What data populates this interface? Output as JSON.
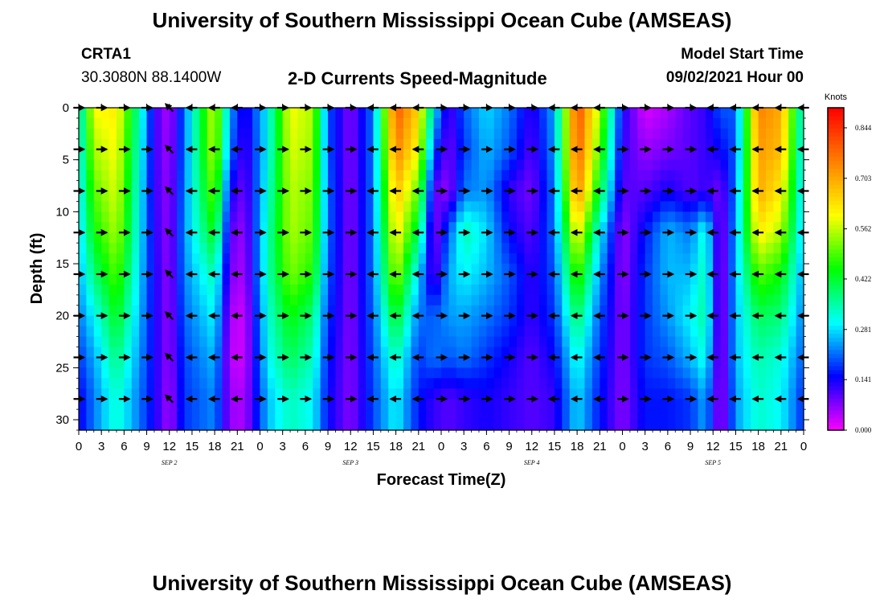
{
  "page": {
    "title_top": "University of Southern Mississippi Ocean Cube (AMSEAS)",
    "title_bottom": "University of Southern Mississippi Ocean Cube (AMSEAS)",
    "station": "CRTA1",
    "location": "30.3080N  88.1400W",
    "plot_title": "2-D Currents Speed-Magnitude",
    "model_start_label": "Model Start Time",
    "model_start_value": "09/02/2021 Hour 00"
  },
  "chart_data": {
    "type": "heatmap",
    "title": "2-D Currents Speed-Magnitude",
    "xlabel": "Forecast Time(Z)",
    "ylabel": "Depth (ft)",
    "x_range_hours": [
      0,
      96
    ],
    "ylim": [
      0,
      31
    ],
    "x_tick_labels": [
      "0",
      "3",
      "6",
      "9",
      "12",
      "15",
      "18",
      "21",
      "0",
      "3",
      "6",
      "9",
      "12",
      "15",
      "18",
      "21",
      "0",
      "3",
      "6",
      "9",
      "12",
      "15",
      "18",
      "21",
      "0",
      "3",
      "6",
      "9",
      "12",
      "15",
      "18",
      "21",
      "0"
    ],
    "y_ticks": [
      0,
      5,
      10,
      15,
      20,
      25,
      30
    ],
    "day_labels": [
      {
        "label": "SEP 2",
        "hour": 12
      },
      {
        "label": "SEP 3",
        "hour": 36
      },
      {
        "label": "SEP 4",
        "hour": 60
      },
      {
        "label": "SEP 5",
        "hour": 84
      }
    ],
    "colorbar": {
      "unit": "Knots",
      "min": 0.0,
      "max": 0.9,
      "ticks": [
        "0.000",
        "0.141",
        "0.281",
        "0.422",
        "0.562",
        "0.703",
        "0.844"
      ],
      "tick_values": [
        0.0,
        0.141,
        0.281,
        0.422,
        0.562,
        0.703,
        0.844
      ],
      "colors": [
        "#ff00ff",
        "#8000ff",
        "#0000ff",
        "#0080ff",
        "#00ffff",
        "#00ff80",
        "#00ff00",
        "#80ff00",
        "#ffff00",
        "#ffc000",
        "#ff8000",
        "#ff4000",
        "#ff0000"
      ]
    },
    "arrow_depths_ft": [
      0,
      4,
      8,
      12,
      16,
      20,
      24,
      28
    ],
    "arrow_hours": [
      0,
      3,
      6,
      9,
      12,
      15,
      18,
      21,
      24,
      27,
      30,
      33,
      36,
      39,
      42,
      45,
      48,
      51,
      54,
      57,
      60,
      63,
      66,
      69,
      72,
      75,
      78,
      81,
      84,
      87,
      90,
      93,
      96
    ],
    "speed_field": {
      "description": "Current speed magnitude (knots) versus forecast hour and depth, estimated from the colour map",
      "columns": [
        {
          "hour": 0,
          "speeds": [
            0.3,
            0.29,
            0.28,
            0.27,
            0.25,
            0.22,
            0.18,
            0.14
          ]
        },
        {
          "hour": 2,
          "speeds": [
            0.6,
            0.55,
            0.5,
            0.45,
            0.38,
            0.3,
            0.25,
            0.22
          ]
        },
        {
          "hour": 5,
          "speeds": [
            0.62,
            0.6,
            0.58,
            0.55,
            0.5,
            0.44,
            0.38,
            0.33
          ]
        },
        {
          "hour": 8,
          "speeds": [
            0.35,
            0.33,
            0.31,
            0.3,
            0.28,
            0.26,
            0.24,
            0.22
          ]
        },
        {
          "hour": 10,
          "speeds": [
            0.12,
            0.12,
            0.12,
            0.13,
            0.14,
            0.14,
            0.14,
            0.14
          ]
        },
        {
          "hour": 12,
          "speeds": [
            0.04,
            0.05,
            0.06,
            0.06,
            0.06,
            0.06,
            0.06,
            0.05
          ]
        },
        {
          "hour": 14,
          "speeds": [
            0.22,
            0.22,
            0.23,
            0.24,
            0.23,
            0.21,
            0.19,
            0.18
          ]
        },
        {
          "hour": 18,
          "speeds": [
            0.58,
            0.57,
            0.52,
            0.45,
            0.35,
            0.3,
            0.26,
            0.23
          ]
        },
        {
          "hour": 20,
          "speeds": [
            0.25,
            0.22,
            0.15,
            0.1,
            0.08,
            0.05,
            0.04,
            0.06
          ]
        },
        {
          "hour": 22,
          "speeds": [
            0.12,
            0.1,
            0.08,
            0.06,
            0.05,
            0.03,
            0.03,
            0.05
          ]
        },
        {
          "hour": 25,
          "speeds": [
            0.3,
            0.3,
            0.32,
            0.34,
            0.34,
            0.32,
            0.3,
            0.26
          ]
        },
        {
          "hour": 28,
          "speeds": [
            0.6,
            0.58,
            0.56,
            0.55,
            0.52,
            0.45,
            0.4,
            0.34
          ]
        },
        {
          "hour": 31,
          "speeds": [
            0.55,
            0.54,
            0.52,
            0.5,
            0.46,
            0.38,
            0.34,
            0.3
          ]
        },
        {
          "hour": 33,
          "speeds": [
            0.2,
            0.2,
            0.21,
            0.21,
            0.2,
            0.18,
            0.16,
            0.15
          ]
        },
        {
          "hour": 36,
          "speeds": [
            0.07,
            0.07,
            0.07,
            0.07,
            0.07,
            0.07,
            0.07,
            0.07
          ]
        },
        {
          "hour": 39,
          "speeds": [
            0.22,
            0.22,
            0.22,
            0.22,
            0.22,
            0.21,
            0.2,
            0.19
          ]
        },
        {
          "hour": 42,
          "speeds": [
            0.8,
            0.75,
            0.68,
            0.62,
            0.55,
            0.44,
            0.35,
            0.3
          ]
        },
        {
          "hour": 45,
          "speeds": [
            0.65,
            0.6,
            0.5,
            0.4,
            0.28,
            0.22,
            0.18,
            0.16
          ]
        },
        {
          "hour": 47,
          "speeds": [
            0.3,
            0.2,
            0.1,
            0.06,
            0.08,
            0.2,
            0.22,
            0.12
          ]
        },
        {
          "hour": 49,
          "speeds": [
            0.1,
            0.08,
            0.06,
            0.2,
            0.25,
            0.24,
            0.2,
            0.1
          ]
        },
        {
          "hour": 51,
          "speeds": [
            0.2,
            0.18,
            0.22,
            0.35,
            0.3,
            0.25,
            0.22,
            0.12
          ]
        },
        {
          "hour": 54,
          "speeds": [
            0.28,
            0.26,
            0.24,
            0.28,
            0.26,
            0.22,
            0.18,
            0.14
          ]
        },
        {
          "hour": 57,
          "speeds": [
            0.22,
            0.2,
            0.12,
            0.15,
            0.2,
            0.18,
            0.14,
            0.12
          ]
        },
        {
          "hour": 60,
          "speeds": [
            0.12,
            0.1,
            0.08,
            0.1,
            0.12,
            0.12,
            0.1,
            0.1
          ]
        },
        {
          "hour": 63,
          "speeds": [
            0.25,
            0.24,
            0.22,
            0.22,
            0.2,
            0.18,
            0.15,
            0.12
          ]
        },
        {
          "hour": 66,
          "speeds": [
            0.82,
            0.8,
            0.75,
            0.62,
            0.5,
            0.4,
            0.32,
            0.28
          ]
        },
        {
          "hour": 69,
          "speeds": [
            0.55,
            0.5,
            0.42,
            0.3,
            0.24,
            0.2,
            0.18,
            0.16
          ]
        },
        {
          "hour": 72,
          "speeds": [
            0.14,
            0.12,
            0.1,
            0.06,
            0.06,
            0.07,
            0.07,
            0.07
          ]
        },
        {
          "hour": 75,
          "speeds": [
            0.02,
            0.06,
            0.1,
            0.16,
            0.18,
            0.18,
            0.18,
            0.16
          ]
        },
        {
          "hour": 78,
          "speeds": [
            0.05,
            0.08,
            0.14,
            0.26,
            0.26,
            0.24,
            0.2,
            0.16
          ]
        },
        {
          "hour": 81,
          "speeds": [
            0.1,
            0.1,
            0.1,
            0.22,
            0.26,
            0.3,
            0.26,
            0.18
          ]
        },
        {
          "hour": 83,
          "speeds": [
            0.12,
            0.12,
            0.12,
            0.33,
            0.35,
            0.36,
            0.32,
            0.25
          ]
        },
        {
          "hour": 85,
          "speeds": [
            0.2,
            0.15,
            0.08,
            0.05,
            0.04,
            0.04,
            0.04,
            0.04
          ]
        },
        {
          "hour": 87,
          "speeds": [
            0.2,
            0.2,
            0.22,
            0.25,
            0.26,
            0.26,
            0.26,
            0.24
          ]
        },
        {
          "hour": 90,
          "speeds": [
            0.75,
            0.72,
            0.7,
            0.62,
            0.5,
            0.4,
            0.35,
            0.33
          ]
        },
        {
          "hour": 93,
          "speeds": [
            0.7,
            0.68,
            0.62,
            0.55,
            0.45,
            0.38,
            0.32,
            0.3
          ]
        },
        {
          "hour": 96,
          "speeds": [
            0.3,
            0.28,
            0.27,
            0.26,
            0.24,
            0.22,
            0.2,
            0.17
          ]
        }
      ]
    },
    "arrow_directions": [
      {
        "hour": 0,
        "direction": "east"
      },
      {
        "hour": 3,
        "direction": "east"
      },
      {
        "hour": 6,
        "direction": "east"
      },
      {
        "hour": 9,
        "direction": "east"
      },
      {
        "hour": 12,
        "direction": "north-west"
      },
      {
        "hour": 15,
        "direction": "west"
      },
      {
        "hour": 18,
        "direction": "west"
      },
      {
        "hour": 21,
        "direction": "west"
      },
      {
        "hour": 24,
        "direction": "east"
      },
      {
        "hour": 27,
        "direction": "east"
      },
      {
        "hour": 30,
        "direction": "east"
      },
      {
        "hour": 33,
        "direction": "east"
      },
      {
        "hour": 36,
        "direction": "east"
      },
      {
        "hour": 39,
        "direction": "west"
      },
      {
        "hour": 42,
        "direction": "west"
      },
      {
        "hour": 45,
        "direction": "west"
      },
      {
        "hour": 48,
        "direction": "east"
      },
      {
        "hour": 51,
        "direction": "east"
      },
      {
        "hour": 54,
        "direction": "east"
      },
      {
        "hour": 57,
        "direction": "east"
      },
      {
        "hour": 60,
        "direction": "east"
      },
      {
        "hour": 63,
        "direction": "west"
      },
      {
        "hour": 66,
        "direction": "west"
      },
      {
        "hour": 69,
        "direction": "west"
      },
      {
        "hour": 72,
        "direction": "east"
      },
      {
        "hour": 75,
        "direction": "east"
      },
      {
        "hour": 78,
        "direction": "east"
      },
      {
        "hour": 81,
        "direction": "east"
      },
      {
        "hour": 84,
        "direction": "west"
      },
      {
        "hour": 87,
        "direction": "west"
      },
      {
        "hour": 90,
        "direction": "west"
      },
      {
        "hour": 93,
        "direction": "west"
      },
      {
        "hour": 96,
        "direction": "west"
      }
    ]
  }
}
